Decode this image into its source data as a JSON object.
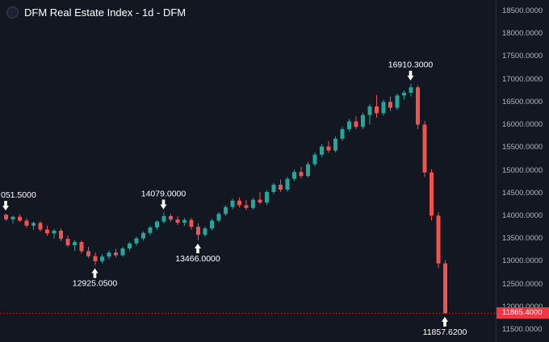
{
  "legend": {
    "title": "DFM Real Estate Index - 1d - DFM"
  },
  "chart_data": {
    "type": "candlestick",
    "title": "DFM Real Estate Index - 1d - DFM",
    "symbol": "DFM Real Estate Index",
    "interval": "1d",
    "exchange": "DFM",
    "grid": false,
    "y_axis": {
      "min": 11500,
      "max": 18500,
      "step": 500,
      "labels": [
        "18500.0000",
        "18000.0000",
        "17500.0000",
        "17000.0000",
        "16500.0000",
        "16000.0000",
        "15500.0000",
        "15000.0000",
        "14500.0000",
        "14000.0000",
        "13500.0000",
        "13000.0000",
        "12500.0000",
        "12000.0000",
        "11500.0000"
      ]
    },
    "colors": {
      "up": "#26a69a",
      "down": "#ef5350",
      "last_price": "#f23645",
      "background": "#131722",
      "axis_text": "#b2b5be",
      "annotation_text": "#ffffff"
    },
    "current_price": {
      "value": 11865.4,
      "label": "11865.4000"
    },
    "annotations": [
      {
        "text": "051.5000",
        "value": 14051.5,
        "candle": 0,
        "type": "high",
        "anchor": "start",
        "text_x": 1
      },
      {
        "text": "12925.0500",
        "value": 12925.05,
        "candle": 13,
        "type": "low"
      },
      {
        "text": "14079.0000",
        "value": 14079.0,
        "candle": 23,
        "type": "high"
      },
      {
        "text": "13466.0000",
        "value": 13466.0,
        "candle": 28,
        "type": "low"
      },
      {
        "text": "16910.3000",
        "value": 16910.3,
        "candle": 59,
        "type": "high"
      },
      {
        "text": "11857.6200",
        "value": 11857.62,
        "candle": 64,
        "type": "low"
      }
    ],
    "candles": [
      [
        14030,
        14051.5,
        13890,
        13930
      ],
      [
        13930,
        14010,
        13840,
        13985
      ],
      [
        13985,
        14040,
        13870,
        13900
      ],
      [
        13900,
        13950,
        13740,
        13790
      ],
      [
        13790,
        13880,
        13700,
        13850
      ],
      [
        13850,
        13890,
        13660,
        13705
      ],
      [
        13705,
        13790,
        13570,
        13620
      ],
      [
        13620,
        13720,
        13500,
        13680
      ],
      [
        13680,
        13730,
        13450,
        13500
      ],
      [
        13500,
        13570,
        13320,
        13360
      ],
      [
        13360,
        13470,
        13240,
        13430
      ],
      [
        13430,
        13460,
        13180,
        13230
      ],
      [
        13230,
        13330,
        13080,
        13120
      ],
      [
        13120,
        13200,
        12925.05,
        13010
      ],
      [
        13010,
        13160,
        12960,
        13110
      ],
      [
        13110,
        13250,
        13050,
        13200
      ],
      [
        13200,
        13280,
        13090,
        13140
      ],
      [
        13140,
        13330,
        13110,
        13290
      ],
      [
        13290,
        13430,
        13240,
        13400
      ],
      [
        13400,
        13550,
        13350,
        13510
      ],
      [
        13510,
        13660,
        13460,
        13630
      ],
      [
        13630,
        13790,
        13580,
        13750
      ],
      [
        13750,
        13910,
        13700,
        13880
      ],
      [
        13880,
        14079,
        13840,
        14000
      ],
      [
        14000,
        14050,
        13880,
        13925
      ],
      [
        13925,
        13995,
        13805,
        13855
      ],
      [
        13855,
        13955,
        13785,
        13915
      ],
      [
        13915,
        13965,
        13705,
        13765
      ],
      [
        13765,
        13845,
        13466,
        13590
      ],
      [
        13590,
        13770,
        13540,
        13730
      ],
      [
        13730,
        13940,
        13690,
        13900
      ],
      [
        13900,
        14090,
        13860,
        14050
      ],
      [
        14050,
        14240,
        14000,
        14200
      ],
      [
        14200,
        14390,
        14150,
        14340
      ],
      [
        14340,
        14410,
        14190,
        14240
      ],
      [
        14240,
        14350,
        14130,
        14180
      ],
      [
        14180,
        14400,
        14140,
        14360
      ],
      [
        14360,
        14530,
        14260,
        14300
      ],
      [
        14300,
        14570,
        14250,
        14530
      ],
      [
        14530,
        14730,
        14480,
        14690
      ],
      [
        14690,
        14800,
        14530,
        14580
      ],
      [
        14580,
        14860,
        14540,
        14820
      ],
      [
        14820,
        15020,
        14770,
        14970
      ],
      [
        14970,
        15080,
        14830,
        14880
      ],
      [
        14880,
        15190,
        14840,
        15140
      ],
      [
        15140,
        15400,
        15090,
        15350
      ],
      [
        15350,
        15580,
        15300,
        15530
      ],
      [
        15530,
        15650,
        15390,
        15440
      ],
      [
        15440,
        15750,
        15400,
        15700
      ],
      [
        15700,
        15960,
        15650,
        15910
      ],
      [
        15910,
        16130,
        15860,
        16080
      ],
      [
        16080,
        16190,
        15910,
        15960
      ],
      [
        15960,
        16270,
        15910,
        16220
      ],
      [
        16220,
        16460,
        16010,
        16410
      ],
      [
        16410,
        16660,
        16160,
        16260
      ],
      [
        16260,
        16560,
        16210,
        16510
      ],
      [
        16510,
        16630,
        16310,
        16380
      ],
      [
        16380,
        16690,
        16330,
        16650
      ],
      [
        16650,
        16760,
        16560,
        16710
      ],
      [
        16710,
        16910.3,
        16630,
        16830
      ],
      [
        16830,
        16870,
        15910,
        16010
      ],
      [
        16010,
        16090,
        14860,
        14960
      ],
      [
        14960,
        15030,
        13910,
        14010
      ],
      [
        14010,
        14080,
        12860,
        12960
      ],
      [
        12960,
        13030,
        11857.62,
        11865.4
      ]
    ]
  }
}
